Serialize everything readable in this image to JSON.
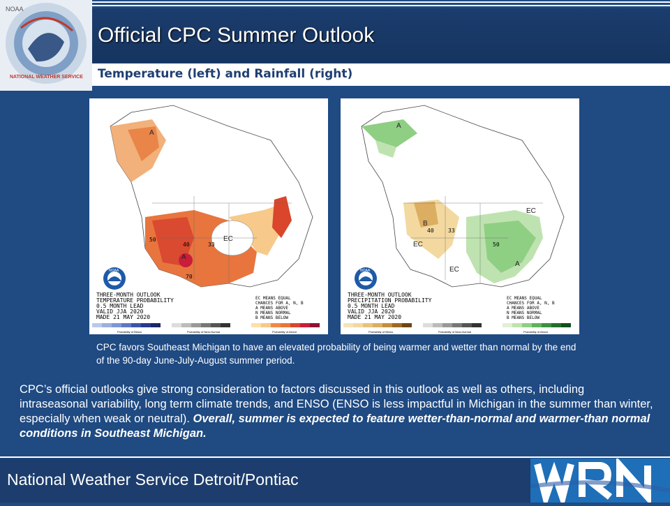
{
  "header": {
    "title": "Official CPC Summer Outlook",
    "subtitle": "Temperature (left) and Rainfall (right)",
    "logo_text": "NATIONAL WEATHER SERVICE",
    "logo_top_text": "NOAA"
  },
  "maps": {
    "temperature": {
      "legend": [
        "THREE-MONTH OUTLOOK",
        "TEMPERATURE PROBABILITY",
        "0.5 MONTH LEAD",
        "VALID JJA 2020",
        "MADE 21 MAY 2020"
      ],
      "key": [
        "EC MEANS EQUAL",
        "CHANCES FOR A, N, B",
        "A MEANS ABOVE",
        "N MEANS NORMAL",
        "B MEANS BELOW"
      ],
      "labels": {
        "a1": "A",
        "a2": "A",
        "ec": "EC",
        "p50": "50",
        "p40": "40",
        "p33": "33",
        "p70": "70"
      },
      "scale_left": "Probability of Below",
      "scale_mid": "Probability of Near-Normal",
      "scale_right": "Probability of Above",
      "colors": {
        "above_light": "#f7c98a",
        "above_mid": "#ef8a4a",
        "above_dark": "#d9462b",
        "above_max": "#c81e3a"
      }
    },
    "precipitation": {
      "legend": [
        "THREE-MONTH OUTLOOK",
        "PRECIPITATION PROBABILITY",
        "0.5 MONTH LEAD",
        "VALID JJA 2020",
        "MADE 21 MAY 2020"
      ],
      "key": [
        "EC MEANS EQUAL",
        "CHANCES FOR A, N, B",
        "A MEANS ABOVE",
        "N MEANS NORMAL",
        "B MEANS BELOW"
      ],
      "labels": {
        "a1": "A",
        "a2": "A",
        "b": "B",
        "ec1": "EC",
        "ec2": "EC",
        "ec3": "EC",
        "p40": "40",
        "p33": "33",
        "p50": "50"
      },
      "scale_left": "Probability of Below",
      "scale_mid": "Probability of Near-Normal",
      "scale_right": "Probability of Above",
      "colors": {
        "above_light": "#bfe3b0",
        "above_mid": "#8fcf84",
        "below_light": "#f3d9a0",
        "below_mid": "#dcae62"
      }
    },
    "noaa_label": "NOAA"
  },
  "caption": "CPC favors Southeast Michigan to have an elevated probability of being warmer and wetter than normal by the end of the 90-day June-July-August  summer period.",
  "paragraph": {
    "plain": "CPC’s official outlooks give strong consideration to factors discussed in this outlook as well as others, including intraseasonal variability, long term climate trends, and ENSO (ENSO is less impactful in Michigan in the summer than winter, especially when weak or neutral). ",
    "emphasis": "Overall, summer is expected to feature wetter-than-normal and warmer-than normal conditions in Southeast Michigan."
  },
  "footer": {
    "text": "National Weather Service Detroit/Pontiac",
    "wrn_logo": "WRN"
  }
}
